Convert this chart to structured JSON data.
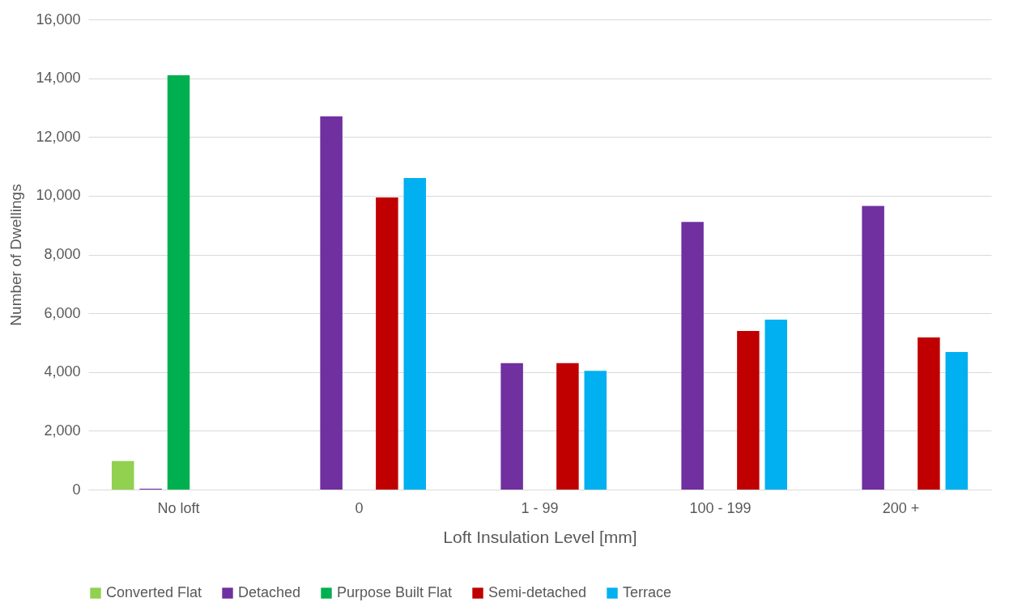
{
  "chart_data": {
    "type": "bar",
    "xlabel": "Loft Insulation Level [mm]",
    "ylabel": "Number of Dwellings",
    "categories": [
      "No loft",
      "0",
      "1 - 99",
      "100 - 199",
      "200 +"
    ],
    "series": [
      {
        "name": "Converted Flat",
        "color": "#92d050",
        "values": [
          970,
          null,
          null,
          null,
          null
        ]
      },
      {
        "name": "Detached",
        "color": "#7030a0",
        "values": [
          30,
          12700,
          4300,
          9110,
          9650
        ]
      },
      {
        "name": "Purpose Built Flat",
        "color": "#00b050",
        "values": [
          14100,
          null,
          null,
          null,
          null
        ]
      },
      {
        "name": "Semi-detached",
        "color": "#c00000",
        "values": [
          null,
          9940,
          4300,
          5400,
          5180
        ]
      },
      {
        "name": "Terrace",
        "color": "#00b0f0",
        "values": [
          null,
          10600,
          4040,
          5780,
          4680
        ]
      }
    ],
    "ylim": [
      0,
      16000
    ],
    "yticks": [
      0,
      {
        "value": 2000,
        "label": "2,000"
      },
      {
        "value": 4000,
        "label": "4,000"
      },
      {
        "value": 6000,
        "label": "6,000"
      },
      {
        "value": 8000,
        "label": "8,000"
      },
      {
        "value": 10000,
        "label": "10,000"
      },
      {
        "value": 12000,
        "label": "12,000"
      },
      {
        "value": 14000,
        "label": "14,000"
      },
      {
        "value": 16000,
        "label": "16,000"
      }
    ],
    "grid": "y",
    "legend": "bottom"
  }
}
